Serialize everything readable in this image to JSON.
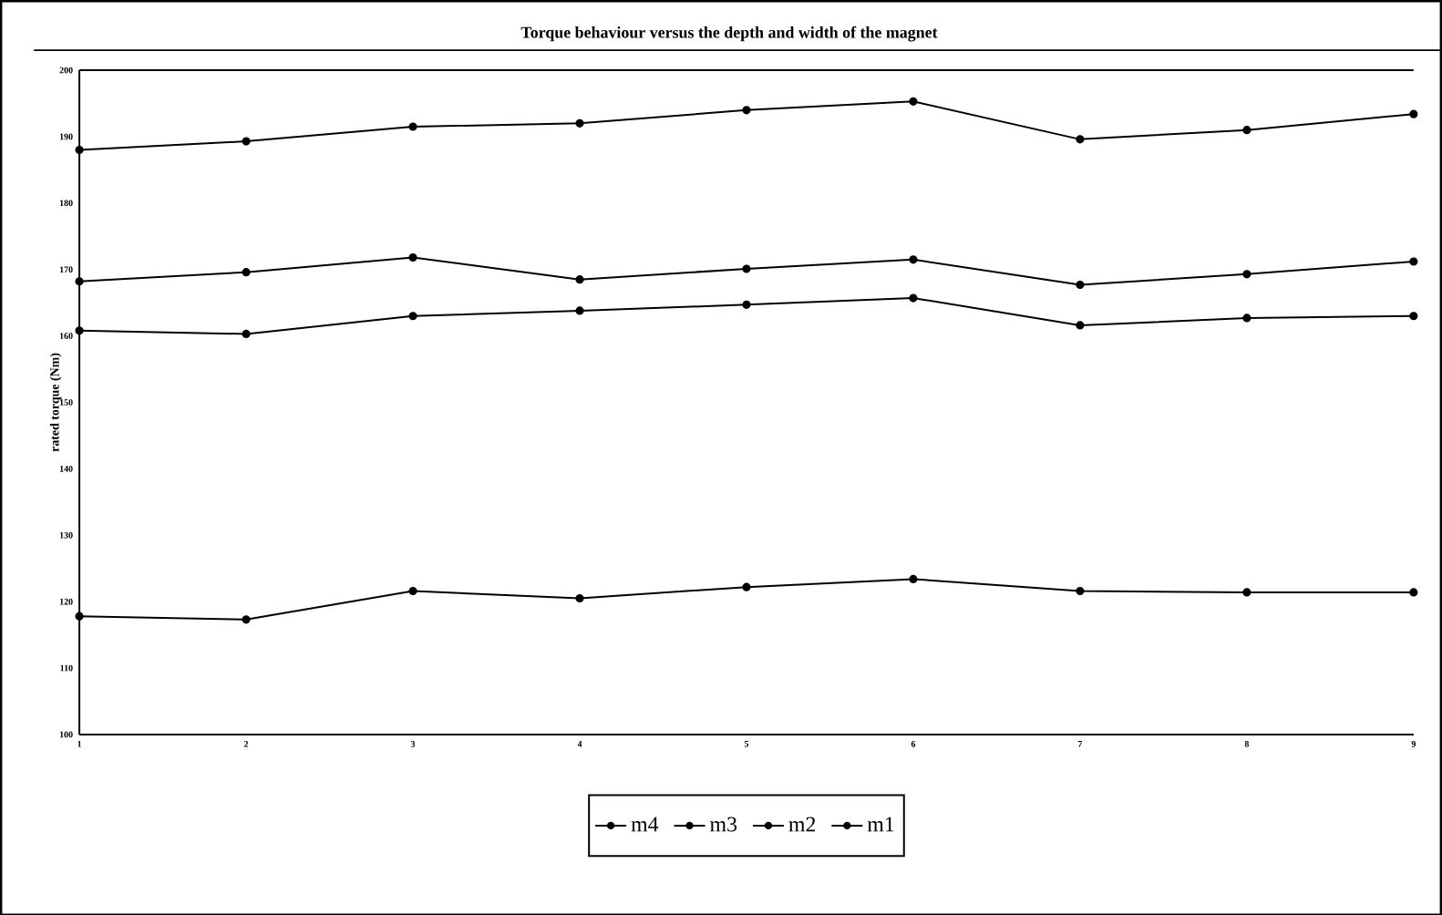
{
  "chart_data": {
    "type": "line",
    "title": "Torque behaviour versus the depth and width of the magnet",
    "ylabel": "rated torque (Nm)",
    "x": [
      1,
      2,
      3,
      4,
      5,
      6,
      7,
      8,
      9
    ],
    "xlim": [
      1,
      9
    ],
    "xticks": [
      1,
      2,
      3,
      4,
      5,
      6,
      7,
      8,
      9
    ],
    "ylim": [
      100,
      200
    ],
    "yticks": [
      100,
      110,
      120,
      130,
      140,
      150,
      160,
      170,
      180,
      190,
      200
    ],
    "series": [
      {
        "name": "m4",
        "color": "#000000",
        "values": [
          168.2,
          169.6,
          171.8,
          168.5,
          170.1,
          171.5,
          167.7,
          169.3,
          171.2
        ]
      },
      {
        "name": "m3",
        "color": "#000000",
        "values": [
          188.0,
          189.3,
          191.5,
          192.0,
          194.0,
          195.3,
          189.6,
          191.0,
          193.4
        ]
      },
      {
        "name": "m2",
        "color": "#000000",
        "values": [
          160.8,
          160.3,
          163.0,
          163.8,
          164.7,
          165.7,
          161.6,
          162.7,
          163.0
        ]
      },
      {
        "name": "m1",
        "color": "#000000",
        "values": [
          117.8,
          117.3,
          121.6,
          120.5,
          122.2,
          123.4,
          121.6,
          121.4,
          121.4
        ]
      }
    ],
    "marker": "circle",
    "line_style": "solid",
    "grid": false,
    "legend": "bottom"
  }
}
